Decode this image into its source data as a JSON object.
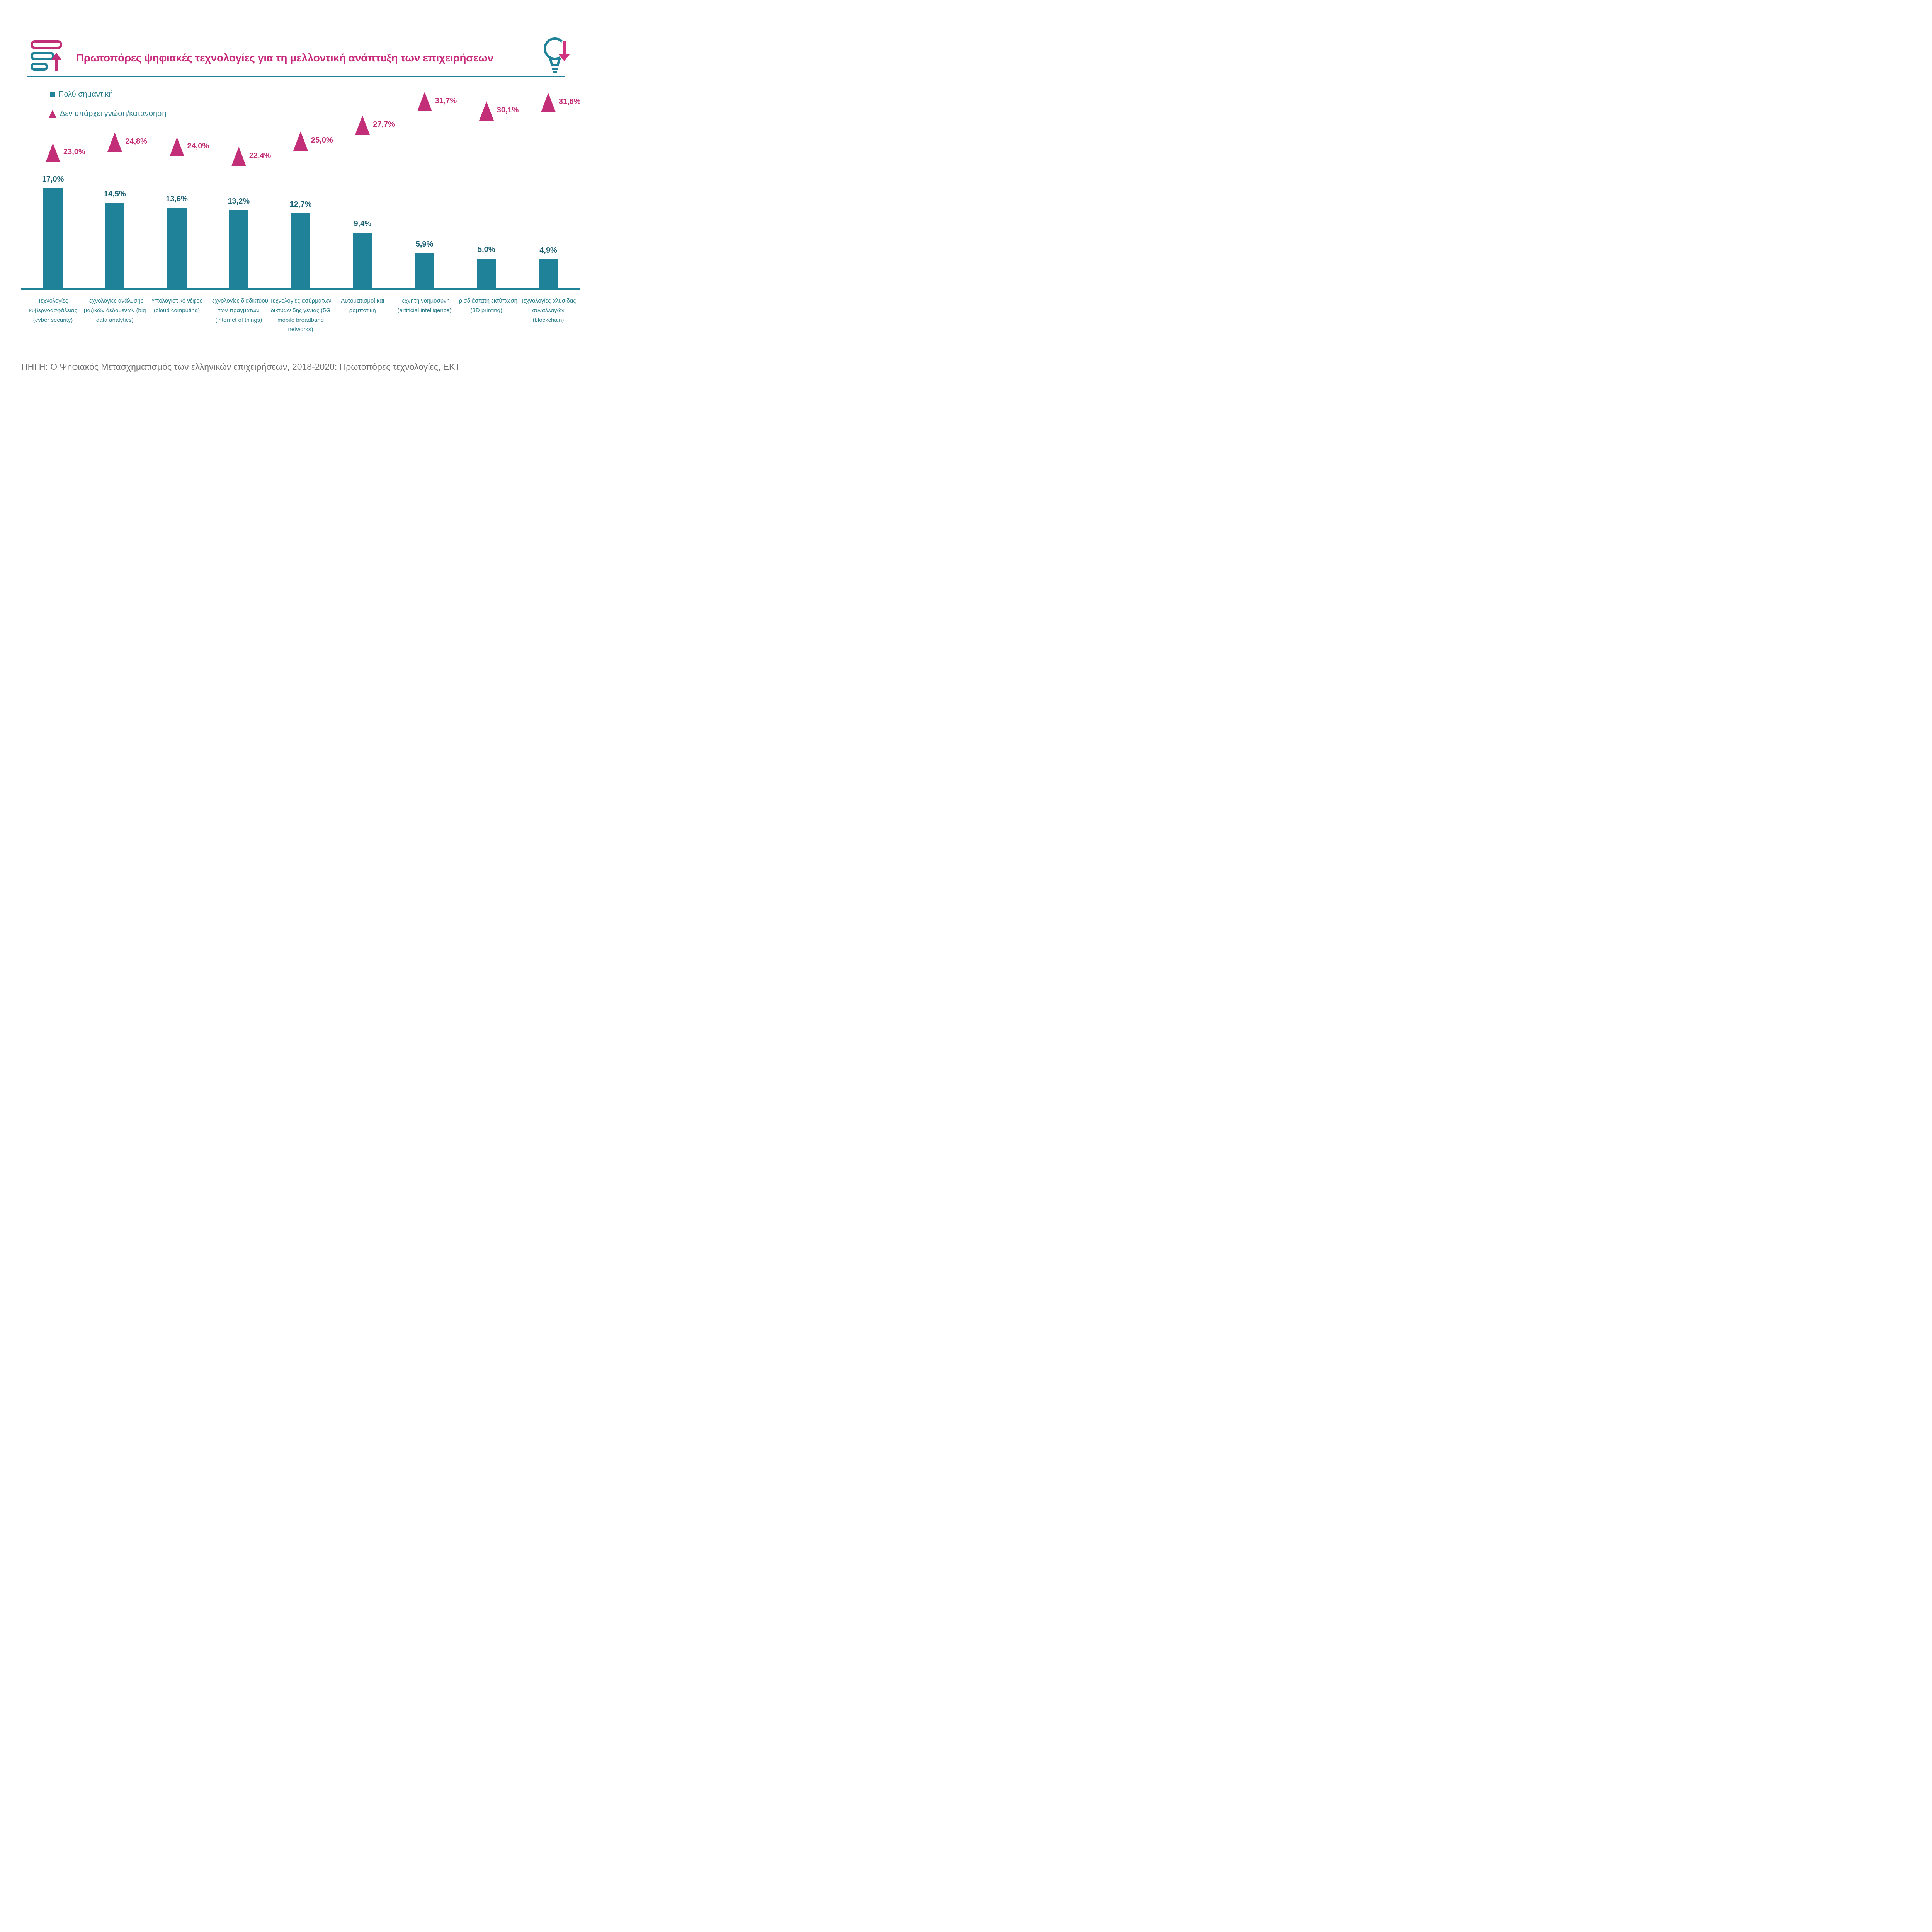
{
  "header": {
    "title": "Πρωτοπόρες ψηφιακές τεχνολογίες για τη μελλοντική ανάπτυξη των επιχειρήσεων"
  },
  "icons": {
    "header_left": "stacked-list-up-arrow-icon",
    "header_right": "lightbulb-down-arrow-icon"
  },
  "legend": {
    "very_important": "Πολύ σημαντική",
    "no_knowledge": "Δεν υπάρχει γνώση/κατανόηση"
  },
  "colors": {
    "teal": "#208299",
    "teal_value_text": "#1b5f73",
    "category_text": "#2a7d8c",
    "magenta": "#c22e78",
    "title_magenta": "#c82a7c",
    "source_gray": "#6d6e71"
  },
  "chart_data": {
    "type": "bar",
    "categories": [
      "Τεχνολογίες κυβερνοασφάλειας (cyber security)",
      "Τεχνολογίες ανάλυσης μαζικών δεδομένων (big data analytics)",
      "Υπολογιστικό νέφος (cloud computing)",
      "Τεχνολογίες διαδικτύου των πραγμάτων (internet of things)",
      "Τεχνολογίες ασύρματων δικτύων 5ης γενιάς (5G mobile broadband networks)",
      "Αυτοματισμοί και ρομποτική",
      "Τεχνητή νοημοσύνη (artificial intelligence)",
      "Τρισδιάστατη εκτύπωση (3D printing)",
      "Τεχνολογίες αλυσίδας συναλλαγών (blockchain)"
    ],
    "series": [
      {
        "name": "Πολύ σημαντική",
        "marker": "bar",
        "color": "#208299",
        "values": [
          17.0,
          14.5,
          13.6,
          13.2,
          12.7,
          9.4,
          5.9,
          5.0,
          4.9
        ],
        "value_labels": [
          "17,0%",
          "14,5%",
          "13,6%",
          "13,2%",
          "12,7%",
          "9,4%",
          "5,9%",
          "5,0%",
          "4,9%"
        ]
      },
      {
        "name": "Δεν υπάρχει γνώση/κατανόηση",
        "marker": "triangle",
        "color": "#c22e78",
        "values": [
          23.0,
          24.8,
          24.0,
          22.4,
          25.0,
          27.7,
          31.7,
          30.1,
          31.6
        ],
        "value_labels": [
          "23,0%",
          "24,8%",
          "24,0%",
          "22,4%",
          "25,0%",
          "27,7%",
          "31,7%",
          "30,1%",
          "31,6%"
        ]
      }
    ],
    "ylim": [
      0,
      35
    ],
    "grid": false,
    "axis_ticks": "none",
    "legend_position": "top-left",
    "value_suffix": "%",
    "decimal_separator": ","
  },
  "source": "ΠΗΓΗ: Ο Ψηφιακός Μετασχηματισμός των ελληνικών επιχειρήσεων, 2018-2020: Πρωτοπόρες τεχνολογίες, ΕΚΤ"
}
